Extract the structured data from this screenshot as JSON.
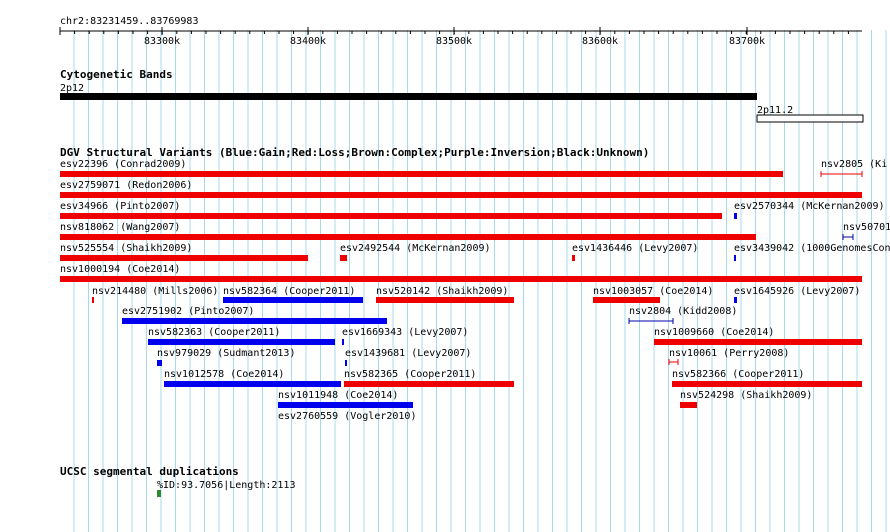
{
  "ruler": {
    "region_label": "chr2:83231459..83769983",
    "ticks": [
      "83300k",
      "83400k",
      "83500k",
      "83600k",
      "83700k"
    ]
  },
  "tracks": [
    {
      "title": "Cytogenetic Bands",
      "features": [
        {
          "label": "2p12",
          "color": "#000000",
          "style": "band"
        },
        {
          "label": "2p11.2",
          "color": "#ffffff",
          "style": "band-outline"
        }
      ]
    },
    {
      "title": "DGV Structural Variants (Blue:Gain;Red:Loss;Brown:Complex;Purple:Inversion;Black:Unknown)",
      "features": [
        {
          "label": "esv22396 (Conrad2009)",
          "color": "#ee0000"
        },
        {
          "label": "nsv2805 (Ki",
          "color": "#ee0000",
          "style": "thin"
        },
        {
          "label": "esv2759071 (Redon2006)",
          "color": "#ee0000"
        },
        {
          "label": "esv34966 (Pinto2007)",
          "color": "#ee0000"
        },
        {
          "label": "esv2570344 (McKernan2009)",
          "color": "#0000ee"
        },
        {
          "label": "nsv818062 (Wang2007)",
          "color": "#ee0000"
        },
        {
          "label": "nsv50701",
          "color": "#0000aa",
          "style": "thin"
        },
        {
          "label": "nsv525554 (Shaikh2009)",
          "color": "#ee0000"
        },
        {
          "label": "esv2492544 (McKernan2009)",
          "color": "#ee0000"
        },
        {
          "label": "esv1436446 (Levy2007)",
          "color": "#ee0000"
        },
        {
          "label": "esv3439042 (1000GenomesCon",
          "color": "#0000ee"
        },
        {
          "label": "nsv1000194 (Coe2014)",
          "color": "#ee0000"
        },
        {
          "label": "nsv214480 (Mills2006)",
          "color": "#ee0000"
        },
        {
          "label": "nsv582364 (Cooper2011)",
          "color": "#0000ee"
        },
        {
          "label": "nsv520142 (Shaikh2009)",
          "color": "#ee0000"
        },
        {
          "label": "nsv1003057 (Coe2014)",
          "color": "#ee0000"
        },
        {
          "label": "esv1645926 (Levy2007)",
          "color": "#0000ee"
        },
        {
          "label": "esv2751902 (Pinto2007)",
          "color": "#0000ee"
        },
        {
          "label": "nsv2804 (Kidd2008)",
          "color": "#0000aa",
          "style": "thin"
        },
        {
          "label": "nsv582363 (Cooper2011)",
          "color": "#0000ee"
        },
        {
          "label": "esv1669343 (Levy2007)",
          "color": "#0000ee"
        },
        {
          "label": "nsv1009660 (Coe2014)",
          "color": "#ee0000"
        },
        {
          "label": "nsv979029 (Sudmant2013)",
          "color": "#0000ee"
        },
        {
          "label": "esv1439681 (Levy2007)",
          "color": "#0000ee"
        },
        {
          "label": "nsv10061 (Perry2008)",
          "color": "#ee0000",
          "style": "thin"
        },
        {
          "label": "nsv1012578 (Coe2014)",
          "color": "#0000ee"
        },
        {
          "label": "nsv582365 (Cooper2011)",
          "color": "#ee0000"
        },
        {
          "label": "nsv582366 (Cooper2011)",
          "color": "#ee0000"
        },
        {
          "label": "nsv1011948 (Coe2014)",
          "color": "#0000ee"
        },
        {
          "label": "nsv524298 (Shaikh2009)",
          "color": "#ee0000"
        },
        {
          "label": "esv2760559 (Vogler2010)",
          "color": "#0000ee"
        }
      ]
    },
    {
      "title": "UCSC segmental duplications",
      "features": [
        {
          "label": "%ID:93.7056|Length:2113",
          "color": "#2e8b2e"
        }
      ]
    }
  ],
  "colors": {
    "grid": "#a8d8ee",
    "loss": "#ee0000",
    "gain": "#0000ee",
    "dup": "#2e8b2e"
  }
}
